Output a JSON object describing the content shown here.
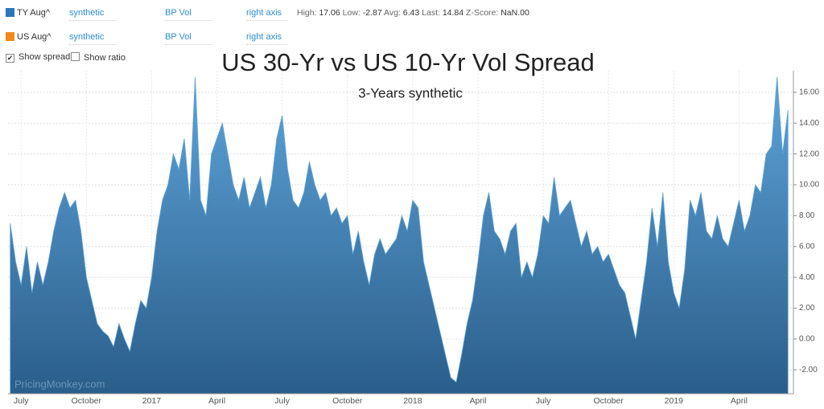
{
  "controls": {
    "series_rows": [
      {
        "name": "TY Aug^",
        "color": "#2a77b8",
        "mode": "synthetic",
        "measure": "BP Vol",
        "axis": "right axis"
      },
      {
        "name": "US Aug^",
        "color": "#f08a1c",
        "mode": "synthetic",
        "measure": "BP Vol",
        "axis": "right axis"
      }
    ],
    "stats": [
      {
        "label": "High:",
        "value": "17.06"
      },
      {
        "label": "Low:",
        "value": "-2.87"
      },
      {
        "label": "Avg:",
        "value": "6.43"
      },
      {
        "label": "Last:",
        "value": "14.84"
      },
      {
        "label": "Z-Score:",
        "value": "NaN.00"
      }
    ],
    "checkboxes": [
      {
        "label": "Show spread",
        "checked": true
      },
      {
        "label": "Show ratio",
        "checked": false
      }
    ]
  },
  "chart_data": {
    "type": "area",
    "title": "US 30-Yr vs US 10-Yr Vol Spread",
    "subtitle": "3-Years synthetic",
    "watermark": "PricingMonkey.com",
    "color_top": "#5ea3d8",
    "color_bottom": "#2a5e8a",
    "xlim": [
      -0.6,
      35.5
    ],
    "xticks": [
      {
        "value": 0,
        "label": "July"
      },
      {
        "value": 3,
        "label": "October"
      },
      {
        "value": 6,
        "label": "2017"
      },
      {
        "value": 9,
        "label": "April"
      },
      {
        "value": 12,
        "label": "July"
      },
      {
        "value": 15,
        "label": "October"
      },
      {
        "value": 18,
        "label": "2018"
      },
      {
        "value": 21,
        "label": "April"
      },
      {
        "value": 24,
        "label": "July"
      },
      {
        "value": 27,
        "label": "October"
      },
      {
        "value": 30,
        "label": "2019"
      },
      {
        "value": 33,
        "label": "April"
      }
    ],
    "ylim": [
      -3.55,
      17.4
    ],
    "yticks": [
      {
        "value": -2,
        "label": "-2.00"
      },
      {
        "value": 0,
        "label": "0.00"
      },
      {
        "value": 2,
        "label": "2.00"
      },
      {
        "value": 4,
        "label": "4.00"
      },
      {
        "value": 6,
        "label": "6.00"
      },
      {
        "value": 8,
        "label": "8.00"
      },
      {
        "value": 10,
        "label": "10.00"
      },
      {
        "value": 12,
        "label": "12.00"
      },
      {
        "value": 14,
        "label": "14.00"
      },
      {
        "value": 16,
        "label": "16.00"
      }
    ],
    "grid": true,
    "x": [
      -0.5,
      -0.25,
      0,
      0.25,
      0.5,
      0.75,
      1,
      1.25,
      1.5,
      1.75,
      2,
      2.25,
      2.5,
      2.75,
      3,
      3.25,
      3.5,
      3.75,
      4,
      4.25,
      4.5,
      4.75,
      5,
      5.25,
      5.5,
      5.75,
      6,
      6.25,
      6.5,
      6.75,
      7,
      7.25,
      7.5,
      7.75,
      8,
      8.25,
      8.5,
      8.75,
      9,
      9.25,
      9.5,
      9.75,
      10,
      10.25,
      10.5,
      10.75,
      11,
      11.25,
      11.5,
      11.75,
      12,
      12.25,
      12.5,
      12.75,
      13,
      13.25,
      13.5,
      13.75,
      14,
      14.25,
      14.5,
      14.75,
      15,
      15.25,
      15.5,
      15.75,
      16,
      16.25,
      16.5,
      16.75,
      17,
      17.25,
      17.5,
      17.75,
      18,
      18.25,
      18.5,
      18.75,
      19,
      19.25,
      19.5,
      19.75,
      20,
      20.25,
      20.5,
      20.75,
      21,
      21.25,
      21.5,
      21.75,
      22,
      22.25,
      22.5,
      22.75,
      23,
      23.25,
      23.5,
      23.75,
      24,
      24.25,
      24.5,
      24.75,
      25,
      25.25,
      25.5,
      25.75,
      26,
      26.25,
      26.5,
      26.75,
      27,
      27.25,
      27.5,
      27.75,
      28,
      28.25,
      28.5,
      28.75,
      29,
      29.25,
      29.5,
      29.75,
      30,
      30.25,
      30.5,
      30.75,
      31,
      31.25,
      31.5,
      31.75,
      32,
      32.25,
      32.5,
      32.75,
      33,
      33.25,
      33.5,
      33.75,
      34,
      34.25,
      34.5,
      34.75,
      35,
      35.25
    ],
    "values": [
      7.5,
      5,
      3.5,
      6,
      3,
      5,
      3.5,
      5,
      7,
      8.5,
      9.5,
      8.5,
      9,
      7,
      4,
      2.5,
      1,
      0.5,
      0.2,
      -0.5,
      1,
      0,
      -0.8,
      1,
      2.5,
      2,
      4,
      7,
      9,
      10,
      12,
      11,
      13,
      9,
      17,
      9,
      8,
      12,
      13,
      14,
      12,
      10,
      9,
      10.5,
      8.5,
      9.5,
      10.5,
      8.5,
      10,
      13,
      14.5,
      11,
      9,
      8.5,
      9.5,
      11.5,
      10,
      9,
      9.5,
      8,
      8.5,
      7.5,
      8,
      5.5,
      7,
      5,
      3.5,
      5.5,
      6.5,
      5.5,
      6,
      6.5,
      8,
      7,
      9,
      8.5,
      5,
      3.5,
      2,
      0.5,
      -1,
      -2.5,
      -2.8,
      -1,
      1,
      2.5,
      5,
      8,
      9.5,
      7,
      6.5,
      5.5,
      7,
      7.5,
      4,
      5,
      4,
      5.5,
      8,
      7.5,
      10.5,
      8,
      8.5,
      9,
      7.5,
      6,
      7,
      5.5,
      6,
      5,
      5.5,
      4.5,
      3.5,
      3,
      1.5,
      0,
      2.5,
      5,
      8.5,
      6,
      9.5,
      5,
      3,
      2,
      4.5,
      9,
      8,
      9.5,
      7,
      6.5,
      8,
      6.5,
      6,
      7.5,
      9,
      7,
      8,
      10,
      9.5,
      12,
      12.5,
      17,
      12,
      14.84
    ]
  }
}
